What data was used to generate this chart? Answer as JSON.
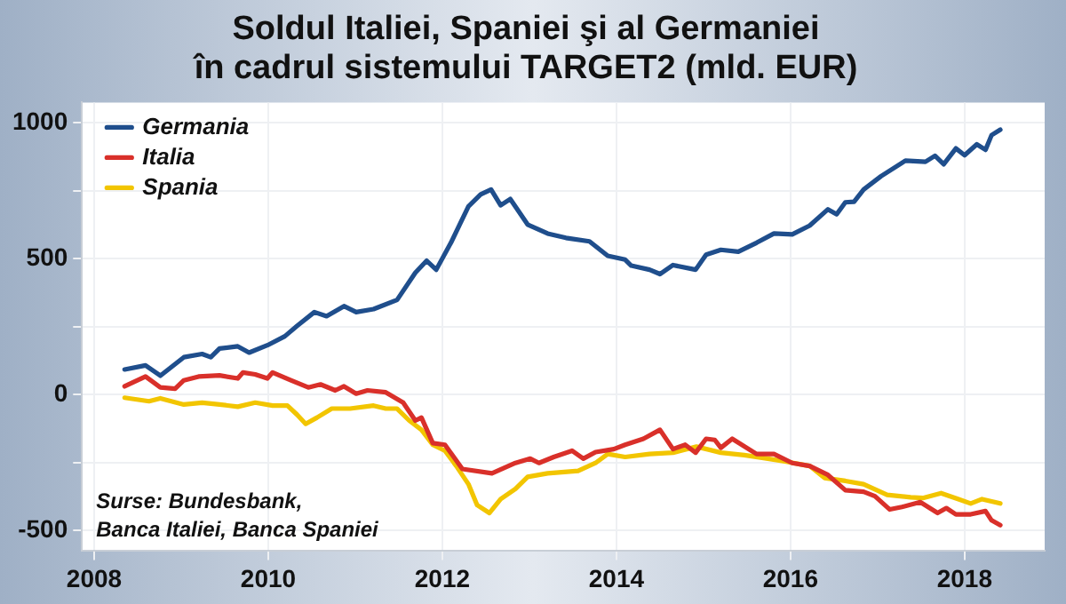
{
  "chart_data": {
    "type": "line",
    "title": "Soldul Italiei, Spaniei şi al Germaniei\nîn cadrul sistemului TARGET2 (mld. EUR)",
    "xlim": [
      2007.86,
      2018.92
    ],
    "xticks": [
      2008,
      2010,
      2012,
      2014,
      2016,
      2018
    ],
    "ylim": [
      -575,
      1075
    ],
    "yticks": [
      -500,
      {
        "value": -250,
        "label": null
      },
      0,
      {
        "value": 250,
        "label": null
      },
      500,
      {
        "value": 750,
        "label": null
      },
      1000
    ],
    "grid": true,
    "legend": "top left",
    "marker": "none",
    "line_style": "solid",
    "annotations": [
      "Surse: Bundesbank,\nBanca Italiei, Banca Spaniei"
    ],
    "series": [
      {
        "name": "Germania",
        "color": "#1f4e8c",
        "x": [
          2008.35,
          2008.59,
          2008.76,
          2009.03,
          2009.24,
          2009.34,
          2009.44,
          2009.65,
          2009.78,
          2009.99,
          2010.19,
          2010.33,
          2010.53,
          2010.67,
          2010.87,
          2011.01,
          2011.21,
          2011.48,
          2011.69,
          2011.82,
          2011.93,
          2012.1,
          2012.3,
          2012.44,
          2012.56,
          2012.67,
          2012.78,
          2012.98,
          2013.21,
          2013.42,
          2013.69,
          2013.9,
          2014.1,
          2014.17,
          2014.38,
          2014.5,
          2014.65,
          2014.91,
          2015.03,
          2015.2,
          2015.4,
          2015.61,
          2015.81,
          2016.02,
          2016.22,
          2016.43,
          2016.53,
          2016.63,
          2016.73,
          2016.84,
          2017.04,
          2017.32,
          2017.55,
          2017.66,
          2017.76,
          2017.9,
          2018.0,
          2018.14,
          2018.24,
          2018.31,
          2018.41
        ],
        "values": [
          93,
          108,
          70,
          138,
          150,
          138,
          170,
          178,
          155,
          182,
          215,
          253,
          304,
          289,
          326,
          304,
          315,
          349,
          449,
          493,
          460,
          560,
          693,
          737,
          755,
          697,
          720,
          626,
          593,
          577,
          564,
          511,
          497,
          475,
          460,
          444,
          477,
          460,
          515,
          533,
          526,
          559,
          593,
          590,
          622,
          682,
          664,
          708,
          710,
          755,
          804,
          861,
          857,
          879,
          848,
          906,
          881,
          921,
          901,
          955,
          975
        ]
      },
      {
        "name": "Italia",
        "color": "#d9302a",
        "x": [
          2008.35,
          2008.59,
          2008.76,
          2008.93,
          2009.03,
          2009.2,
          2009.44,
          2009.65,
          2009.71,
          2009.85,
          2009.99,
          2010.05,
          2010.26,
          2010.46,
          2010.6,
          2010.77,
          2010.87,
          2011.01,
          2011.14,
          2011.35,
          2011.55,
          2011.69,
          2011.76,
          2011.89,
          2012.03,
          2012.23,
          2012.57,
          2012.84,
          2013.01,
          2013.11,
          2013.28,
          2013.49,
          2013.62,
          2013.76,
          2013.97,
          2014.1,
          2014.31,
          2014.5,
          2014.65,
          2014.79,
          2014.91,
          2015.03,
          2015.13,
          2015.2,
          2015.33,
          2015.61,
          2015.81,
          2016.02,
          2016.22,
          2016.43,
          2016.63,
          2016.84,
          2016.97,
          2017.14,
          2017.28,
          2017.49,
          2017.69,
          2017.79,
          2017.9,
          2018.07,
          2018.24,
          2018.31,
          2018.41
        ],
        "values": [
          31,
          67,
          27,
          22,
          53,
          67,
          71,
          60,
          82,
          75,
          60,
          82,
          53,
          27,
          38,
          16,
          31,
          4,
          16,
          9,
          -29,
          -95,
          -84,
          -178,
          -184,
          -273,
          -289,
          -251,
          -235,
          -251,
          -229,
          -206,
          -235,
          -211,
          -200,
          -184,
          -162,
          -129,
          -200,
          -184,
          -213,
          -162,
          -166,
          -195,
          -162,
          -218,
          -218,
          -251,
          -262,
          -295,
          -351,
          -357,
          -373,
          -422,
          -413,
          -395,
          -435,
          -417,
          -440,
          -440,
          -428,
          -462,
          -480
        ]
      },
      {
        "name": "Spania",
        "color": "#f2c500",
        "x": [
          2008.35,
          2008.63,
          2008.76,
          2009.03,
          2009.24,
          2009.44,
          2009.65,
          2009.85,
          2010.05,
          2010.22,
          2010.33,
          2010.43,
          2010.56,
          2010.73,
          2010.94,
          2011.21,
          2011.35,
          2011.48,
          2011.62,
          2011.76,
          2011.89,
          2012.03,
          2012.16,
          2012.3,
          2012.4,
          2012.54,
          2012.67,
          2012.84,
          2012.98,
          2013.21,
          2013.56,
          2013.76,
          2013.9,
          2014.1,
          2014.38,
          2014.65,
          2014.92,
          2015.2,
          2015.47,
          2015.74,
          2015.95,
          2016.22,
          2016.39,
          2016.63,
          2016.84,
          2017.11,
          2017.38,
          2017.52,
          2017.73,
          2017.93,
          2018.07,
          2018.2,
          2018.41
        ],
        "values": [
          -11,
          -24,
          -13,
          -36,
          -29,
          -36,
          -44,
          -29,
          -40,
          -40,
          -73,
          -107,
          -84,
          -51,
          -51,
          -40,
          -51,
          -51,
          -95,
          -129,
          -184,
          -206,
          -262,
          -329,
          -406,
          -435,
          -384,
          -346,
          -302,
          -289,
          -280,
          -251,
          -218,
          -229,
          -218,
          -213,
          -191,
          -213,
          -222,
          -235,
          -246,
          -262,
          -306,
          -317,
          -329,
          -368,
          -377,
          -380,
          -362,
          -384,
          -400,
          -384,
          -400
        ]
      }
    ]
  }
}
